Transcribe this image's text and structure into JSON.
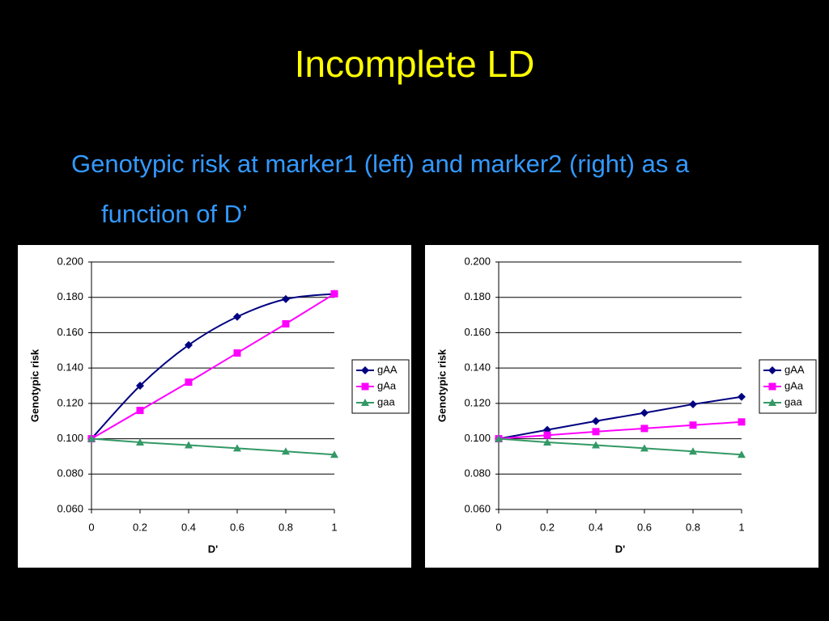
{
  "slide": {
    "title": "Incomplete LD",
    "subtitle": "Genotypic risk at marker1 (left) and marker2 (right) as a function of D’"
  },
  "chart_data": [
    {
      "type": "line",
      "xlabel": "D'",
      "ylabel": "Genotypic risk",
      "x": [
        0,
        0.2,
        0.4,
        0.6,
        0.8,
        1
      ],
      "xlim": [
        0,
        1
      ],
      "xticks": [
        0,
        0.2,
        0.4,
        0.6,
        0.8,
        1
      ],
      "ylim": [
        0.06,
        0.2
      ],
      "yticks": [
        {
          "value": 0.06,
          "label": "0.060"
        },
        {
          "value": 0.08,
          "label": "0.080"
        },
        {
          "value": 0.1,
          "label": "0.100"
        },
        {
          "value": 0.12,
          "label": "0.120"
        },
        {
          "value": 0.14,
          "label": "0.140"
        },
        {
          "value": 0.16,
          "label": "0.160"
        },
        {
          "value": 0.18,
          "label": "0.180"
        },
        {
          "value": 0.2,
          "label": "0.200"
        }
      ],
      "grid": true,
      "legend": "right",
      "series": [
        {
          "name": "gAA",
          "color": "#000080",
          "marker": "diamond",
          "smooth": true,
          "values": [
            0.1,
            0.13,
            0.153,
            0.169,
            0.179,
            0.182
          ]
        },
        {
          "name": "gAa",
          "color": "#ff00ff",
          "marker": "square",
          "values": [
            0.1,
            0.116,
            0.132,
            0.1485,
            0.165,
            0.182
          ]
        },
        {
          "name": "gaa",
          "color": "#339966",
          "marker": "triangle",
          "values": [
            0.1,
            0.098,
            0.0964,
            0.0946,
            0.0928,
            0.091
          ]
        }
      ]
    },
    {
      "type": "line",
      "xlabel": "D'",
      "ylabel": "Genotypic risk",
      "x": [
        0,
        0.2,
        0.4,
        0.6,
        0.8,
        1
      ],
      "xlim": [
        0,
        1
      ],
      "xticks": [
        0,
        0.2,
        0.4,
        0.6,
        0.8,
        1
      ],
      "ylim": [
        0.06,
        0.2
      ],
      "yticks": [
        {
          "value": 0.06,
          "label": "0.060"
        },
        {
          "value": 0.08,
          "label": "0.080"
        },
        {
          "value": 0.1,
          "label": "0.100"
        },
        {
          "value": 0.12,
          "label": "0.120"
        },
        {
          "value": 0.14,
          "label": "0.140"
        },
        {
          "value": 0.16,
          "label": "0.160"
        },
        {
          "value": 0.18,
          "label": "0.180"
        },
        {
          "value": 0.2,
          "label": "0.200"
        }
      ],
      "grid": true,
      "legend": "right",
      "series": [
        {
          "name": "gAA",
          "color": "#000080",
          "marker": "diamond",
          "values": [
            0.1,
            0.105,
            0.11,
            0.1146,
            0.1195,
            0.1237
          ]
        },
        {
          "name": "gAa",
          "color": "#ff00ff",
          "marker": "square",
          "values": [
            0.1,
            0.102,
            0.104,
            0.1058,
            0.1077,
            0.1095
          ]
        },
        {
          "name": "gaa",
          "color": "#339966",
          "marker": "triangle",
          "values": [
            0.1,
            0.098,
            0.0964,
            0.0946,
            0.0928,
            0.091
          ]
        }
      ]
    }
  ]
}
